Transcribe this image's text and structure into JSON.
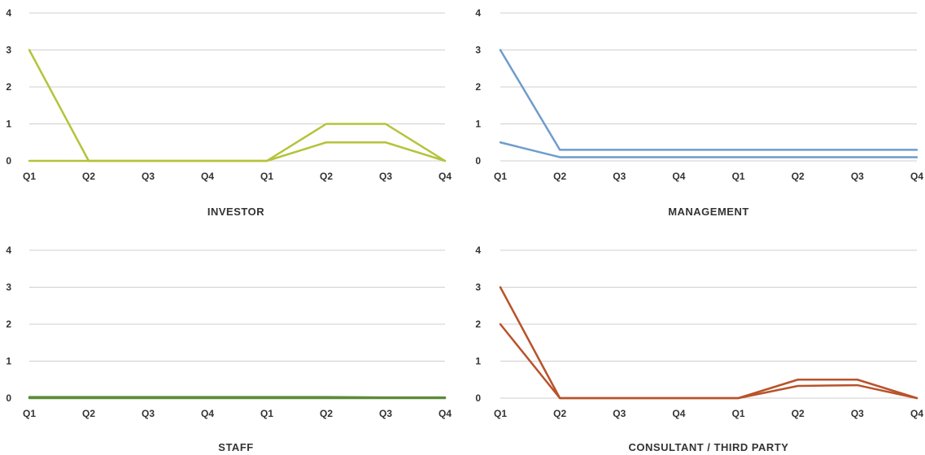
{
  "chart_data": [
    {
      "type": "line",
      "title": "INVESTOR",
      "categories": [
        "Q1",
        "Q2",
        "Q3",
        "Q4",
        "Q1",
        "Q2",
        "Q3",
        "Q4"
      ],
      "ylim": [
        0,
        4
      ],
      "yticks": [
        0,
        1,
        2,
        3,
        4
      ],
      "grid": true,
      "color": "#b5c33a",
      "series": [
        {
          "values": [
            3,
            0,
            0,
            0,
            0,
            1,
            1,
            0
          ]
        },
        {
          "values": [
            0,
            0,
            0,
            0,
            0,
            0.5,
            0.5,
            0
          ]
        }
      ]
    },
    {
      "type": "line",
      "title": "MANAGEMENT",
      "categories": [
        "Q1",
        "Q2",
        "Q3",
        "Q4",
        "Q1",
        "Q2",
        "Q3",
        "Q4"
      ],
      "ylim": [
        0,
        4
      ],
      "yticks": [
        0,
        1,
        2,
        3,
        4
      ],
      "grid": true,
      "color": "#6f9ccc",
      "series": [
        {
          "values": [
            3,
            0.3,
            0.3,
            0.3,
            0.3,
            0.3,
            0.3,
            0.3
          ]
        },
        {
          "values": [
            0.5,
            0.1,
            0.1,
            0.1,
            0.1,
            0.1,
            0.1,
            0.1
          ]
        }
      ]
    },
    {
      "type": "line",
      "title": "STAFF",
      "categories": [
        "Q1",
        "Q2",
        "Q3",
        "Q4",
        "Q1",
        "Q2",
        "Q3",
        "Q4"
      ],
      "ylim": [
        0,
        4
      ],
      "yticks": [
        0,
        1,
        2,
        3,
        4
      ],
      "grid": true,
      "color": "#5c8c3a",
      "series": [
        {
          "values": [
            0.03,
            0.03,
            0.03,
            0.03,
            0.03,
            0.03,
            0.02,
            0.02
          ]
        },
        {
          "values": [
            0,
            0,
            0,
            0,
            0,
            0,
            0,
            0
          ]
        }
      ]
    },
    {
      "type": "line",
      "title": "CONSULTANT / THIRD PARTY",
      "categories": [
        "Q1",
        "Q2",
        "Q3",
        "Q4",
        "Q1",
        "Q2",
        "Q3",
        "Q4"
      ],
      "ylim": [
        0,
        4
      ],
      "yticks": [
        0,
        1,
        2,
        3,
        4
      ],
      "grid": true,
      "color": "#b8532a",
      "series": [
        {
          "values": [
            3,
            0,
            0,
            0,
            0,
            0.5,
            0.5,
            0
          ]
        },
        {
          "values": [
            2,
            0,
            0,
            0,
            0,
            0.33,
            0.35,
            0
          ]
        }
      ]
    }
  ]
}
